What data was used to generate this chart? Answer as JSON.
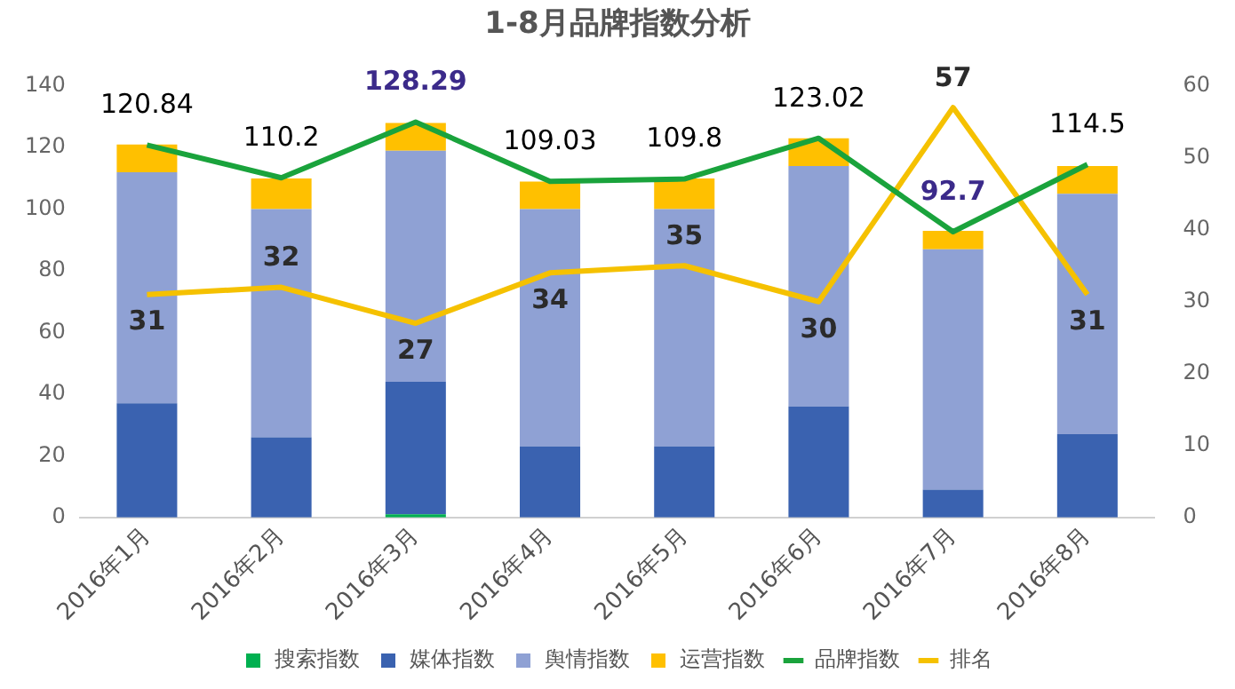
{
  "chart_data": {
    "type": "bar",
    "title": "1-8月品牌指数分析",
    "stacked": true,
    "legend": "bottom",
    "grid": false,
    "categories": [
      "2016年1月",
      "2016年2月",
      "2016年3月",
      "2016年4月",
      "2016年5月",
      "2016年6月",
      "2016年7月",
      "2016年8月"
    ],
    "ylim": [
      0,
      140
    ],
    "yticks": [
      0,
      20,
      40,
      60,
      80,
      100,
      120,
      140
    ],
    "y2lim": [
      0,
      60
    ],
    "y2ticks": [
      0,
      10,
      20,
      30,
      40,
      50,
      60
    ],
    "series": [
      {
        "name": "搜索指数",
        "color": "#00b050",
        "values": [
          0,
          0,
          1,
          0,
          0,
          0,
          0,
          0
        ]
      },
      {
        "name": "媒体指数",
        "color": "#3a62b0",
        "values": [
          37,
          26,
          43,
          23,
          23,
          36,
          9,
          27
        ]
      },
      {
        "name": "舆情指数",
        "color": "#8fa1d4",
        "values": [
          75,
          74,
          75,
          77,
          77,
          78,
          78,
          78
        ]
      },
      {
        "name": "运营指数",
        "color": "#ffc000",
        "values": [
          9,
          10,
          9,
          9,
          10,
          9,
          6,
          9
        ]
      },
      {
        "name": "品牌指数",
        "type": "line",
        "color": "#1aa33c",
        "values": [
          120.84,
          110.2,
          128.29,
          109.03,
          109.8,
          123.02,
          92.7,
          114.5
        ],
        "data_labels": true
      },
      {
        "name": "排名",
        "type": "line",
        "axis": "y2",
        "color": "#f5c100",
        "values": [
          31,
          32,
          27,
          34,
          35,
          30,
          57,
          31
        ],
        "data_labels": true
      }
    ]
  }
}
